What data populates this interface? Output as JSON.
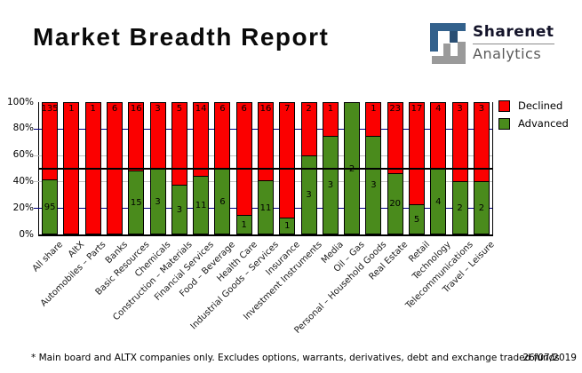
{
  "header": {
    "title": "Market Breadth Report",
    "logo": {
      "brand": "Sharenet",
      "sub": "Analytics",
      "blue": "#33618c",
      "gray": "#9a9a9a"
    }
  },
  "chart_data": {
    "type": "bar",
    "stacked": true,
    "normalized": "percent",
    "title": "Market Breadth Report",
    "categories": [
      "All share",
      "AltX",
      "Automobiles – Parts",
      "Banks",
      "Basic Resources",
      "Chemicals",
      "Construction – Materials",
      "Financial Services",
      "Food – Beverage",
      "Health Care",
      "Industrial Goods – Services",
      "Insurance",
      "Investment Instruments",
      "Media",
      "Oil – Gas",
      "Personal – Household Goods",
      "Real Estate",
      "Retail",
      "Technology",
      "Telecommunications",
      "Travel – Leisure"
    ],
    "series": [
      {
        "name": "Declined",
        "color": "#fb0000",
        "values": [
          135,
          1,
          1,
          6,
          16,
          3,
          5,
          14,
          6,
          6,
          16,
          7,
          2,
          1,
          0,
          1,
          23,
          17,
          4,
          3,
          3
        ]
      },
      {
        "name": "Advanced",
        "color": "#4a8b1c",
        "values": [
          95,
          0,
          0,
          0,
          15,
          3,
          3,
          11,
          6,
          1,
          11,
          1,
          3,
          3,
          2,
          3,
          20,
          5,
          4,
          2,
          2
        ]
      }
    ],
    "ylim": [
      0,
      100
    ],
    "y_ticks": [
      {
        "label": "100%",
        "value": 100
      },
      {
        "label": "80%",
        "value": 80
      },
      {
        "label": "60%",
        "value": 60
      },
      {
        "label": "40%",
        "value": 40
      },
      {
        "label": "20%",
        "value": 20
      },
      {
        "label": "0%",
        "value": 0
      }
    ],
    "gridlines": {
      "navy_color": "#000080",
      "navy_at": [
        80,
        20
      ],
      "gray_color": "#c0c0c0",
      "gray_at": [
        60,
        40
      ],
      "highlight_line_at": 50,
      "highlight_color": "#000000"
    },
    "legend_position": "top-right",
    "legend": [
      {
        "label": "Declined",
        "color": "#fb0000"
      },
      {
        "label": "Advanced",
        "color": "#4a8b1c"
      }
    ]
  },
  "footer": {
    "note": "* Main board and ALTX companies only. Excludes options, warrants, derivatives, debt and exchange traded funds",
    "date": "26/07/2019"
  }
}
